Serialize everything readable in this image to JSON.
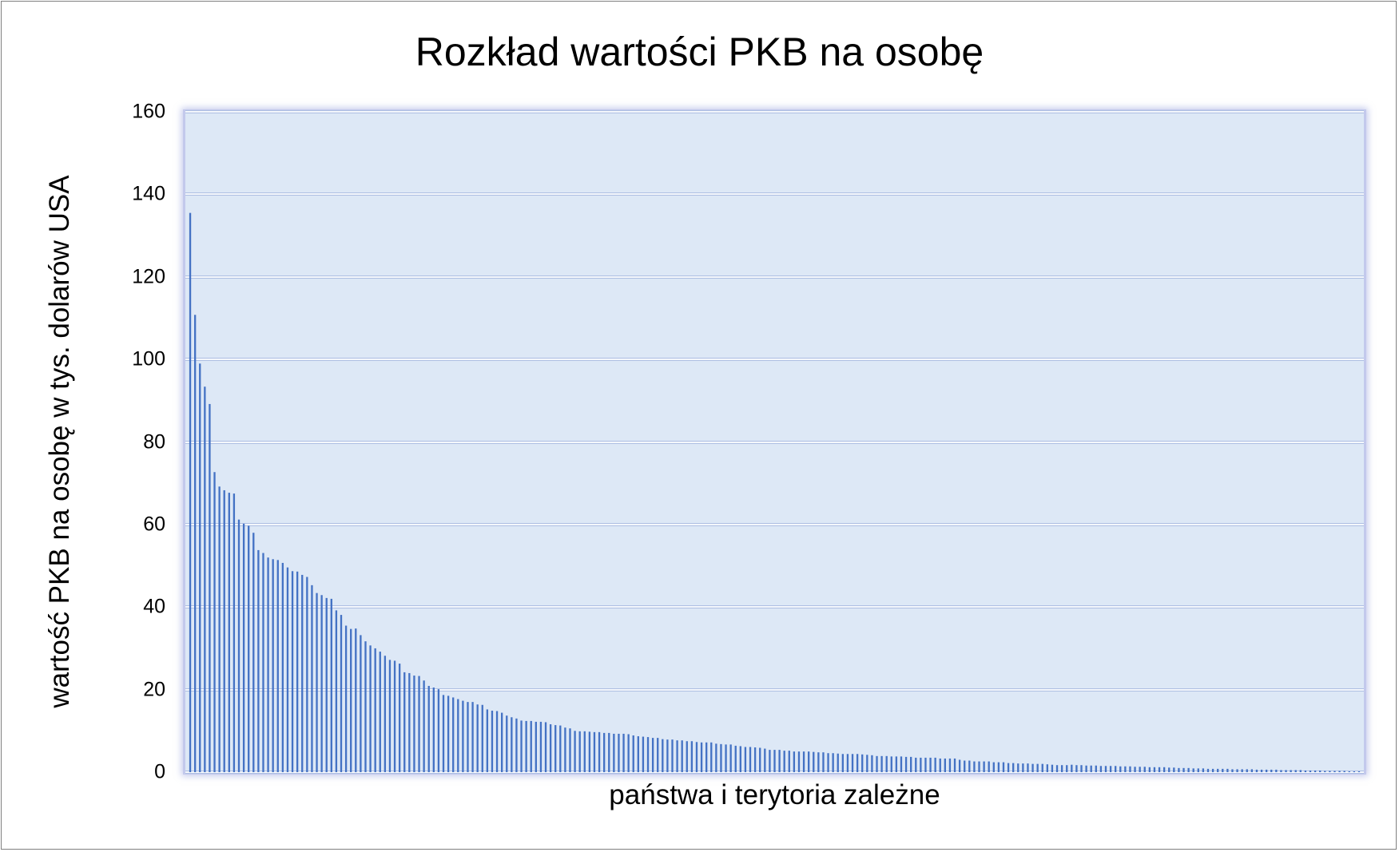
{
  "chart_data": {
    "type": "bar",
    "title": "Rozkład wartości PKB na osobę",
    "xlabel": "państwa i terytoria zależne",
    "ylabel": "wartość PKB na osobę w tys. dolarów USA",
    "ylim": [
      0,
      160
    ],
    "yticks": [
      0,
      20,
      40,
      60,
      80,
      100,
      120,
      140,
      160
    ],
    "grid": true,
    "legend": null,
    "bar_color": "#4472c4",
    "plot_background": "#dde8f6",
    "categories_note": "unlabeled, one bar per country/territory, sorted descending",
    "values": [
      135.5,
      110.8,
      99.0,
      93.4,
      89.2,
      72.7,
      69.2,
      68.3,
      67.7,
      67.5,
      61.2,
      60.2,
      59.7,
      58.0,
      53.8,
      53.1,
      52.0,
      51.6,
      51.4,
      50.7,
      49.6,
      48.7,
      48.6,
      47.8,
      47.3,
      45.3,
      43.4,
      42.9,
      42.2,
      42.0,
      39.2,
      38.1,
      35.5,
      34.7,
      34.8,
      33.2,
      31.7,
      30.7,
      30.0,
      29.2,
      28.2,
      27.2,
      27.0,
      26.3,
      24.2,
      24.0,
      23.4,
      23.3,
      22.2,
      20.9,
      20.5,
      20.1,
      18.7,
      18.5,
      18.1,
      17.7,
      17.3,
      17.0,
      17.0,
      16.4,
      16.3,
      15.2,
      14.9,
      14.8,
      14.4,
      13.7,
      13.3,
      13.0,
      12.5,
      12.4,
      12.4,
      12.2,
      12.2,
      12.1,
      11.6,
      11.4,
      11.3,
      10.8,
      10.6,
      10.0,
      9.9,
      9.9,
      9.8,
      9.7,
      9.7,
      9.5,
      9.5,
      9.3,
      9.3,
      9.3,
      9.2,
      8.9,
      8.7,
      8.6,
      8.5,
      8.3,
      8.3,
      8.0,
      7.9,
      7.9,
      7.7,
      7.7,
      7.5,
      7.5,
      7.3,
      7.2,
      7.2,
      7.2,
      6.9,
      6.8,
      6.7,
      6.7,
      6.4,
      6.3,
      6.1,
      6.1,
      6.0,
      5.9,
      5.7,
      5.4,
      5.4,
      5.4,
      5.2,
      5.2,
      5.0,
      5.0,
      5.0,
      5.0,
      4.9,
      4.8,
      4.8,
      4.6,
      4.6,
      4.5,
      4.4,
      4.4,
      4.4,
      4.4,
      4.3,
      4.2,
      4.1,
      3.9,
      3.9,
      3.9,
      3.8,
      3.8,
      3.8,
      3.7,
      3.7,
      3.5,
      3.5,
      3.5,
      3.5,
      3.5,
      3.3,
      3.3,
      3.3,
      3.3,
      3.0,
      2.8,
      2.8,
      2.6,
      2.6,
      2.6,
      2.6,
      2.4,
      2.4,
      2.4,
      2.2,
      2.2,
      2.1,
      2.1,
      2.1,
      2.0,
      2.0,
      2.0,
      1.9,
      1.8,
      1.7,
      1.7,
      1.7,
      1.8,
      1.7,
      1.7,
      1.6,
      1.6,
      1.6,
      1.5,
      1.5,
      1.5,
      1.5,
      1.4,
      1.4,
      1.4,
      1.3,
      1.3,
      1.3,
      1.2,
      1.2,
      1.2,
      1.2,
      1.1,
      1.1,
      1.0,
      1.0,
      1.0,
      0.9,
      0.9,
      0.9,
      0.8,
      0.8,
      0.8,
      0.8,
      0.8,
      0.7,
      0.7,
      0.7,
      0.7,
      0.7,
      0.6,
      0.6,
      0.6,
      0.6,
      0.6,
      0.5,
      0.5,
      0.5,
      0.5,
      0.5,
      0.4,
      0.4,
      0.4,
      0.4,
      0.3,
      0.3,
      0.3,
      0.3,
      0.3,
      0.2,
      0.2,
      0.2
    ]
  }
}
